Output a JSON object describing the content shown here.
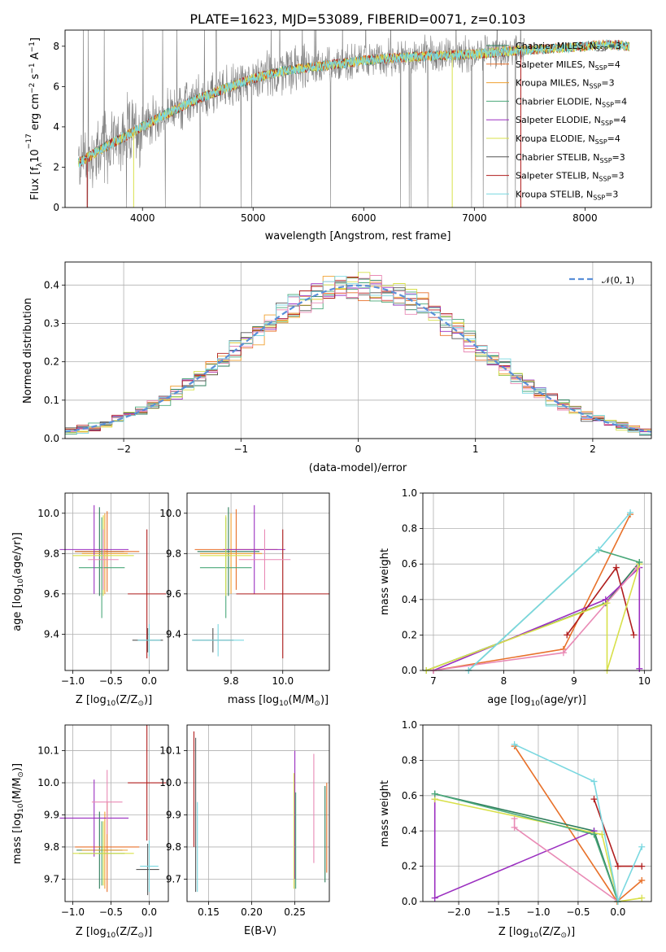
{
  "series_colors": {
    "Chabrier MILES": "#2e7d5b",
    "Salpeter MILES": "#e8712a",
    "Kroupa MILES": "#f0a030",
    "Chabrier ELODIE": "#4aa87a",
    "Salpeter ELODIE": "#9b2fc0",
    "Kroupa ELODIE": "#d8e04a",
    "Chabrier STELIB": "#555555",
    "Salpeter STELIB": "#b01e1e",
    "Kroupa STELIB": "#7ad8e0",
    "Salpeter (pink)": "#e98ab5",
    "obs": "#808080",
    "normal": "#5a8fd8"
  },
  "chart_data": [
    {
      "id": "spectrum",
      "type": "line",
      "title": "PLATE=1623, MJD=53089, FIBERID=0071, z=0.103",
      "xlabel": "wavelength [Angstrom, rest frame]",
      "ylabel": "Flux [f",
      "xlim": [
        3300,
        8600
      ],
      "ylim": [
        0,
        8.8
      ],
      "xticks": [
        "4000",
        "5000",
        "6000",
        "7000",
        "8000"
      ],
      "yticks": [
        "0",
        "2",
        "4",
        "6",
        "8"
      ],
      "legend_position": "upper right",
      "legend": [
        {
          "base": "Chabrier MILES, N",
          "sub": "SSP",
          "tail": "=3"
        },
        {
          "base": "Salpeter MILES, N",
          "sub": "SSP",
          "tail": "=4"
        },
        {
          "base": "Kroupa MILES, N",
          "sub": "SSP",
          "tail": "=3"
        },
        {
          "base": "Chabrier ELODIE, N",
          "sub": "SSP",
          "tail": "=4"
        },
        {
          "base": "Salpeter ELODIE, N",
          "sub": "SSP",
          "tail": "=4"
        },
        {
          "base": "Kroupa ELODIE, N",
          "sub": "SSP",
          "tail": "=4"
        },
        {
          "base": "Chabrier STELIB, N",
          "sub": "SSP",
          "tail": "=3"
        },
        {
          "base": "Salpeter STELIB, N",
          "sub": "SSP",
          "tail": "=3"
        },
        {
          "base": "Kroupa STELIB, N",
          "sub": "SSP",
          "tail": "=3"
        }
      ],
      "continuum": {
        "x": [
          3420,
          3600,
          3800,
          4000,
          4200,
          4500,
          4800,
          5000,
          5300,
          5600,
          6000,
          6500,
          7000,
          7400,
          7800,
          8200,
          8400
        ],
        "y": [
          2.2,
          2.8,
          3.4,
          4.0,
          4.6,
          5.4,
          6.0,
          6.4,
          6.8,
          7.0,
          7.3,
          7.5,
          7.6,
          7.8,
          7.9,
          8.1,
          8.0
        ]
      }
    },
    {
      "id": "residuals",
      "type": "bar",
      "xlabel": "(data-model)/error",
      "ylabel": "Normed distribution",
      "xlim": [
        -2.5,
        2.5
      ],
      "ylim": [
        0,
        0.46
      ],
      "xticks": [
        "−2",
        "−1",
        "0",
        "1",
        "2"
      ],
      "yticks": [
        "0.0",
        "0.1",
        "0.2",
        "0.3",
        "0.4"
      ],
      "legend": "𝒩(0, 1)",
      "bin_width": 0.1,
      "curve": "normal(0,1)"
    },
    {
      "id": "age_vs_Z",
      "type": "scatter",
      "xlabel": "Z [log10(Z/Z⊙)]",
      "ylabel": "age [log10(age/yr)]",
      "xlim": [
        -1.1,
        0.25
      ],
      "ylim": [
        9.22,
        10.1
      ],
      "xticks": [
        "−1.0",
        "−0.5",
        "0.0"
      ],
      "yticks": [
        "9.4",
        "9.6",
        "9.8",
        "10.0"
      ],
      "points": [
        {
          "x": -0.65,
          "y": 9.81,
          "xerr": 0.32,
          "yerr": 0.22,
          "color": "#2e7d5b"
        },
        {
          "x": -0.55,
          "y": 9.81,
          "xerr": 0.42,
          "yerr": 0.2,
          "color": "#e8712a"
        },
        {
          "x": -0.58,
          "y": 9.8,
          "xerr": 0.3,
          "yerr": 0.2,
          "color": "#f0a030"
        },
        {
          "x": -0.62,
          "y": 9.73,
          "xerr": 0.3,
          "yerr": 0.25,
          "color": "#4aa87a"
        },
        {
          "x": -0.72,
          "y": 9.82,
          "xerr": 0.45,
          "yerr": 0.22,
          "color": "#9b2fc0"
        },
        {
          "x": -0.6,
          "y": 9.79,
          "xerr": 0.4,
          "yerr": 0.2,
          "color": "#d8e04a"
        },
        {
          "x": -0.02,
          "y": 9.37,
          "xerr": 0.2,
          "yerr": 0.06,
          "color": "#555555"
        },
        {
          "x": -0.03,
          "y": 9.6,
          "xerr": 0.25,
          "yerr": 0.32,
          "color": "#b01e1e"
        },
        {
          "x": -0.6,
          "y": 9.77,
          "xerr": 0.2,
          "yerr": 0.15,
          "color": "#e98ab5"
        },
        {
          "x": 0.0,
          "y": 9.37,
          "xerr": 0.15,
          "yerr": 0.08,
          "color": "#7ad8e0"
        }
      ]
    },
    {
      "id": "age_vs_mass",
      "type": "scatter",
      "xlabel": "mass [log10(M/M⊙)]",
      "xlim": [
        9.63,
        10.18
      ],
      "ylim": [
        9.22,
        10.1
      ],
      "xticks": [
        "9.8",
        "10.0"
      ],
      "yticks": [
        "9.4",
        "9.6",
        "9.8",
        "10.0"
      ],
      "points": [
        {
          "x": 9.79,
          "y": 9.81,
          "xerr": 0.12,
          "yerr": 0.22,
          "color": "#2e7d5b"
        },
        {
          "x": 9.82,
          "y": 9.82,
          "xerr": 0.16,
          "yerr": 0.2,
          "color": "#e8712a"
        },
        {
          "x": 9.8,
          "y": 9.8,
          "xerr": 0.12,
          "yerr": 0.2,
          "color": "#f0a030"
        },
        {
          "x": 9.78,
          "y": 9.73,
          "xerr": 0.1,
          "yerr": 0.25,
          "color": "#4aa87a"
        },
        {
          "x": 9.89,
          "y": 9.82,
          "xerr": 0.12,
          "yerr": 0.22,
          "color": "#9b2fc0"
        },
        {
          "x": 9.78,
          "y": 9.79,
          "xerr": 0.1,
          "yerr": 0.2,
          "color": "#d8e04a"
        },
        {
          "x": 9.73,
          "y": 9.37,
          "xerr": 0.08,
          "yerr": 0.06,
          "color": "#555555"
        },
        {
          "x": 10.0,
          "y": 9.6,
          "xerr": 0.18,
          "yerr": 0.32,
          "color": "#b01e1e"
        },
        {
          "x": 9.93,
          "y": 9.77,
          "xerr": 0.1,
          "yerr": 0.15,
          "color": "#e98ab5"
        },
        {
          "x": 9.75,
          "y": 9.37,
          "xerr": 0.1,
          "yerr": 0.08,
          "color": "#7ad8e0"
        }
      ]
    },
    {
      "id": "weight_vs_age",
      "type": "line",
      "xlabel": "age [log10(age/yr)]",
      "ylabel": "mass weight",
      "xlim": [
        6.85,
        10.1
      ],
      "ylim": [
        0,
        1.0
      ],
      "xticks": [
        "7",
        "8",
        "9",
        "10"
      ],
      "yticks": [
        "0.0",
        "0.2",
        "0.4",
        "0.6",
        "0.8",
        "1.0"
      ],
      "series": [
        {
          "color": "#e8712a",
          "x": [
            7.0,
            8.85,
            9.8
          ],
          "y": [
            0.0,
            0.12,
            0.88
          ]
        },
        {
          "color": "#2e7d5b",
          "x": [
            6.9,
            9.45,
            9.93
          ],
          "y": [
            0.0,
            0.38,
            0.61
          ]
        },
        {
          "color": "#9b2fc0",
          "x": [
            7.0,
            9.45,
            9.93,
            9.93
          ],
          "y": [
            0.0,
            0.4,
            0.58,
            0.01
          ]
        },
        {
          "color": "#b01e1e",
          "x": [
            8.9,
            9.6,
            9.85
          ],
          "y": [
            0.2,
            0.58,
            0.2
          ]
        },
        {
          "color": "#e98ab5",
          "x": [
            7.0,
            8.85,
            9.9
          ],
          "y": [
            0.0,
            0.1,
            0.58
          ]
        },
        {
          "color": "#d8e04a",
          "x": [
            6.9,
            9.47,
            9.47,
            9.93
          ],
          "y": [
            0.0,
            0.38,
            0.0,
            0.6
          ]
        },
        {
          "color": "#4aa87a",
          "x": [
            7.5,
            9.35,
            9.93
          ],
          "y": [
            0.0,
            0.68,
            0.61
          ]
        },
        {
          "color": "#7ad8e0",
          "x": [
            7.5,
            9.35,
            9.8
          ],
          "y": [
            0.0,
            0.68,
            0.89
          ]
        }
      ]
    },
    {
      "id": "mass_vs_Z",
      "type": "scatter",
      "xlabel": "Z [log10(Z/Z⊙)]",
      "ylabel": "mass [log10(M/M⊙)]",
      "xlim": [
        -1.1,
        0.25
      ],
      "ylim": [
        9.63,
        10.18
      ],
      "xticks": [
        "−1.0",
        "−0.5",
        "0.0"
      ],
      "yticks": [
        "9.7",
        "9.8",
        "9.9",
        "10.0",
        "10.1"
      ],
      "points": [
        {
          "x": -0.65,
          "y": 9.79,
          "xerr": 0.3,
          "yerr": 0.12,
          "color": "#2e7d5b"
        },
        {
          "x": -0.55,
          "y": 9.8,
          "xerr": 0.42,
          "yerr": 0.14,
          "color": "#e8712a"
        },
        {
          "x": -0.58,
          "y": 9.79,
          "xerr": 0.3,
          "yerr": 0.12,
          "color": "#f0a030"
        },
        {
          "x": -0.62,
          "y": 9.78,
          "xerr": 0.3,
          "yerr": 0.1,
          "color": "#4aa87a"
        },
        {
          "x": -0.72,
          "y": 9.89,
          "xerr": 0.45,
          "yerr": 0.12,
          "color": "#9b2fc0"
        },
        {
          "x": -0.6,
          "y": 9.78,
          "xerr": 0.4,
          "yerr": 0.1,
          "color": "#d8e04a"
        },
        {
          "x": -0.02,
          "y": 9.73,
          "xerr": 0.15,
          "yerr": 0.08,
          "color": "#555555"
        },
        {
          "x": -0.03,
          "y": 10.0,
          "xerr": 0.25,
          "yerr": 0.18,
          "color": "#b01e1e"
        },
        {
          "x": -0.55,
          "y": 9.94,
          "xerr": 0.2,
          "yerr": 0.1,
          "color": "#e98ab5"
        },
        {
          "x": 0.0,
          "y": 9.74,
          "xerr": 0.12,
          "yerr": 0.08,
          "color": "#7ad8e0"
        }
      ]
    },
    {
      "id": "mass_vs_ebv",
      "type": "scatter",
      "xlabel": "E(B-V)",
      "xlim": [
        0.125,
        0.29
      ],
      "ylim": [
        9.63,
        10.18
      ],
      "xticks": [
        "0.15",
        "0.20",
        "0.25"
      ],
      "yticks": [
        "9.7",
        "9.8",
        "9.9",
        "10.0",
        "10.1"
      ],
      "points": [
        {
          "x": 0.135,
          "y": 9.9,
          "yerr": 0.24,
          "color": "#555555"
        },
        {
          "x": 0.133,
          "y": 9.98,
          "yerr": 0.18,
          "color": "#b01e1e"
        },
        {
          "x": 0.137,
          "y": 9.8,
          "yerr": 0.14,
          "color": "#7ad8e0"
        },
        {
          "x": 0.25,
          "y": 9.9,
          "yerr": 0.2,
          "color": "#9b2fc0"
        },
        {
          "x": 0.249,
          "y": 9.85,
          "yerr": 0.18,
          "color": "#d8e04a"
        },
        {
          "x": 0.251,
          "y": 9.82,
          "yerr": 0.15,
          "color": "#4aa87a"
        },
        {
          "x": 0.272,
          "y": 9.92,
          "yerr": 0.17,
          "color": "#e98ab5"
        },
        {
          "x": 0.287,
          "y": 9.86,
          "yerr": 0.14,
          "color": "#e8712a"
        },
        {
          "x": 0.285,
          "y": 9.84,
          "yerr": 0.15,
          "color": "#2e7d5b"
        }
      ]
    },
    {
      "id": "weight_vs_Z",
      "type": "line",
      "xlabel": "Z [log10(Z/Z⊙)]",
      "ylabel": "mass weight",
      "xlim": [
        -2.45,
        0.42
      ],
      "ylim": [
        0,
        1.0
      ],
      "xticks": [
        "−2.0",
        "−1.5",
        "−1.0",
        "−0.5",
        "0.0"
      ],
      "yticks": [
        "0.0",
        "0.2",
        "0.4",
        "0.6",
        "0.8",
        "1.0"
      ],
      "series": [
        {
          "color": "#e8712a",
          "x": [
            -1.3,
            -0.01,
            0.3
          ],
          "y": [
            0.88,
            0.0,
            0.12
          ]
        },
        {
          "color": "#2e7d5b",
          "x": [
            -2.3,
            -0.3,
            0.0
          ],
          "y": [
            0.61,
            0.4,
            0.0
          ]
        },
        {
          "color": "#9b2fc0",
          "x": [
            -2.3,
            -2.3,
            -0.3
          ],
          "y": [
            0.58,
            0.02,
            0.4
          ]
        },
        {
          "color": "#b01e1e",
          "x": [
            -0.3,
            0.0,
            0.3
          ],
          "y": [
            0.58,
            0.2,
            0.2
          ]
        },
        {
          "color": "#e98ab5",
          "x": [
            -1.3,
            -1.3,
            0.0
          ],
          "y": [
            0.47,
            0.42,
            0.0
          ]
        },
        {
          "color": "#d8e04a",
          "x": [
            -2.3,
            -0.2,
            0.0,
            0.3
          ],
          "y": [
            0.58,
            0.38,
            0.0,
            0.02
          ]
        },
        {
          "color": "#4aa87a",
          "x": [
            -2.3,
            -0.3,
            0.0
          ],
          "y": [
            0.61,
            0.38,
            0.0
          ]
        },
        {
          "color": "#7ad8e0",
          "x": [
            -1.3,
            -0.3,
            0.0,
            0.3
          ],
          "y": [
            0.89,
            0.68,
            0.0,
            0.31
          ]
        }
      ]
    }
  ]
}
